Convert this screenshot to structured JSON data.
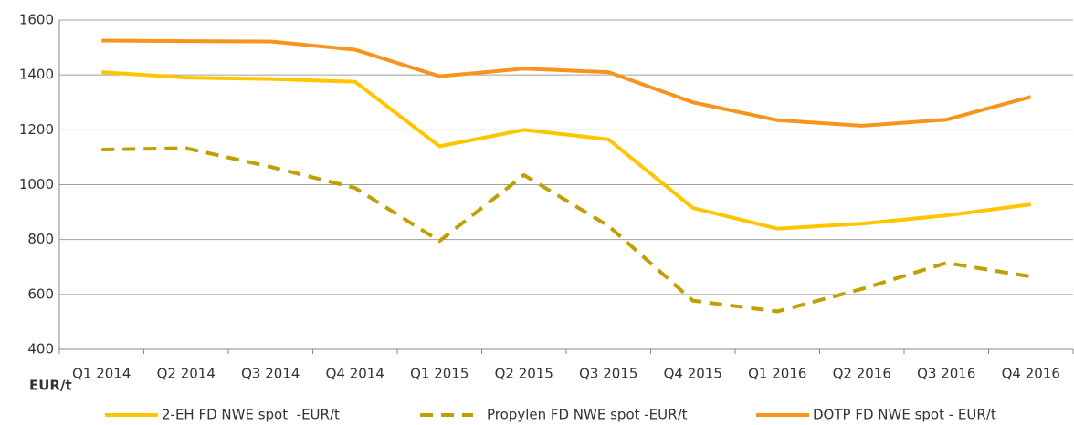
{
  "chart_data": {
    "type": "line",
    "y_label": "EUR/t",
    "categories": [
      "Q1 2014",
      "Q2 2014",
      "Q3 2014",
      "Q4 2014",
      "Q1 2015",
      "Q2 2015",
      "Q3 2015",
      "Q4 2015",
      "Q1 2016",
      "Q2 2016",
      "Q3 2016",
      "Q4 2016"
    ],
    "series": [
      {
        "name": "2-EH FD NWE spot  -EUR/t",
        "color": "#ffc600",
        "dash": false,
        "values": [
          1410,
          1390,
          1385,
          1375,
          1140,
          1200,
          1165,
          915,
          840,
          858,
          888,
          928
        ]
      },
      {
        "name": "Propylen FD NWE spot -EUR/t",
        "color": "#bfa000",
        "dash": true,
        "values": [
          1128,
          1133,
          1065,
          988,
          795,
          1035,
          850,
          577,
          538,
          620,
          715,
          665
        ]
      },
      {
        "name": "DOTP FD NWE spot - EUR/t",
        "color": "#f7941d",
        "dash": false,
        "values": [
          1525,
          1523,
          1522,
          1492,
          1395,
          1423,
          1410,
          1300,
          1235,
          1215,
          1237,
          1320
        ]
      }
    ],
    "ylim": [
      400,
      1600
    ],
    "yticks": [
      400,
      600,
      800,
      1000,
      1200,
      1400,
      1600
    ],
    "grid": true
  }
}
